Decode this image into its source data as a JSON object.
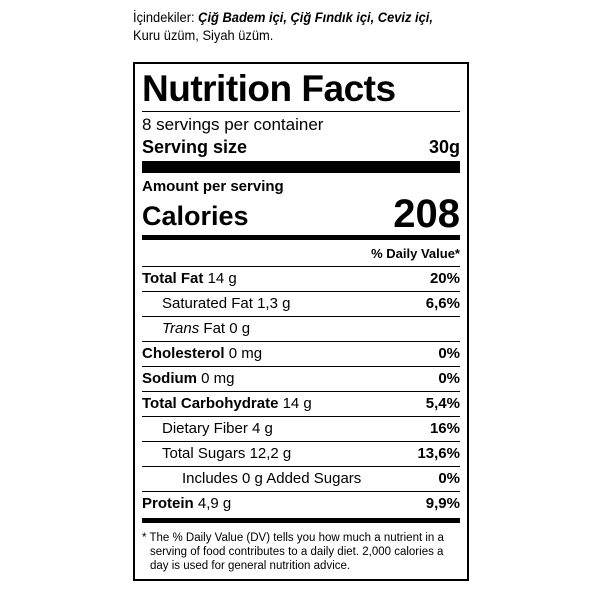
{
  "ingredients": [
    {
      "text": "İçindekiler:",
      "bold": false
    },
    {
      "text": "Çiğ Badem içi,",
      "bold": true
    },
    {
      "text": "Çiğ Fındık içi,",
      "bold": true
    },
    {
      "text": "Ceviz içi,",
      "bold": true
    },
    {
      "text": "Kuru üzüm, Siyah üzüm.",
      "bold": false
    }
  ],
  "label": {
    "title": "Nutrition Facts",
    "servings": "8 servings per container",
    "serving_size": {
      "label": "Serving size",
      "value": "30g"
    },
    "amount_per_serving": "Amount per serving",
    "calories": {
      "label": "Calories",
      "value": "208"
    },
    "dv_header": "% Daily Value*",
    "rows": [
      {
        "name": "Total Fat",
        "amount": "14 g",
        "dv": "20%",
        "bold": true,
        "indent": 0
      },
      {
        "name": "Saturated Fat",
        "amount": "1,3 g",
        "dv": "6,6%",
        "bold": false,
        "indent": 1
      },
      {
        "name": "Trans",
        "amount": "Fat 0 g",
        "bold": false,
        "italic": true,
        "indent": 1
      },
      {
        "name": "Cholesterol",
        "amount": "0 mg",
        "dv": "0%",
        "bold": true,
        "indent": 0
      },
      {
        "name": "Sodium",
        "amount": "0 mg",
        "dv": "0%",
        "bold": true,
        "indent": 0
      },
      {
        "name": "Total Carbohydrate",
        "amount": "14 g",
        "dv": "5,4%",
        "bold": true,
        "indent": 0
      },
      {
        "name": "Dietary Fiber",
        "amount": "4 g",
        "dv": "16%",
        "bold": false,
        "indent": 1
      },
      {
        "name": "Total Sugars",
        "amount": "12,2 g",
        "dv": "13,6%",
        "bold": false,
        "indent": 1
      },
      {
        "name": "Includes 0 g Added Sugars",
        "dv": "0%",
        "bold": false,
        "indent": 2
      },
      {
        "name": "Protein",
        "amount": "4,9 g",
        "dv": "9,9%",
        "bold": true,
        "indent": 0
      }
    ],
    "footnote": "* The % Daily Value (DV) tells you how much a nutrient in a serving of food contributes to a daily diet. 2,000 calories a day is used for general nutrition advice."
  }
}
